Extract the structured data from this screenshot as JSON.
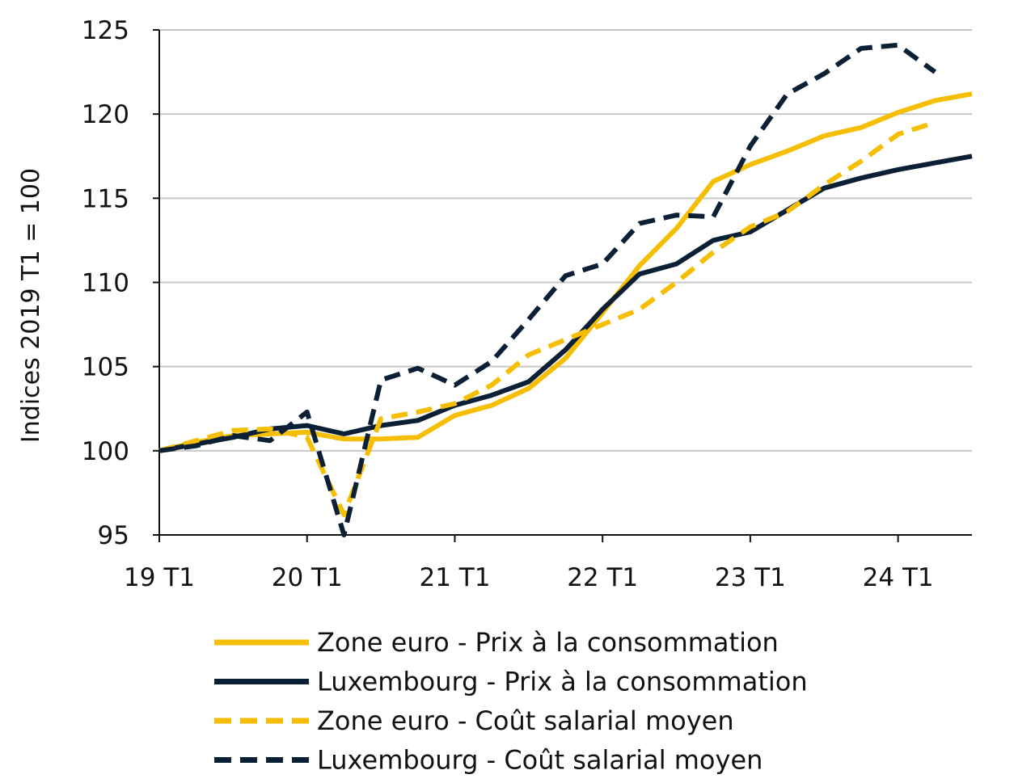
{
  "chart_data": {
    "type": "line",
    "title": "",
    "xlabel": "",
    "ylabel": "Indices 2019 T1 = 100",
    "ylim": [
      95,
      125
    ],
    "yticks": [
      95,
      100,
      105,
      110,
      115,
      120,
      125
    ],
    "xlim": [
      0,
      22
    ],
    "xticks": [
      {
        "x": 0,
        "label": "19 T1"
      },
      {
        "x": 4,
        "label": "20 T1"
      },
      {
        "x": 8,
        "label": "21 T1"
      },
      {
        "x": 12,
        "label": "22 T1"
      },
      {
        "x": 16,
        "label": "23 T1"
      },
      {
        "x": 20,
        "label": "24 T1"
      }
    ],
    "grid": "horizontal",
    "legend_position": "bottom",
    "series": [
      {
        "name": "Zone euro - Prix à la consommation",
        "color": "#F5BE00",
        "style": "solid",
        "x": [
          0,
          1,
          2,
          3,
          4,
          5,
          6,
          7,
          8,
          9,
          10,
          11,
          12,
          13,
          14,
          15,
          16,
          17,
          18,
          19,
          20,
          21,
          22
        ],
        "values": [
          100.0,
          100.5,
          100.9,
          101.0,
          101.1,
          100.7,
          100.7,
          100.8,
          102.1,
          102.7,
          103.7,
          105.5,
          108.2,
          111.0,
          113.2,
          116.0,
          117.0,
          117.8,
          118.7,
          119.2,
          120.1,
          120.8,
          121.2
        ]
      },
      {
        "name": "Luxembourg - Prix à la consommation",
        "color": "#0B1F35",
        "style": "solid",
        "x": [
          0,
          1,
          2,
          3,
          4,
          5,
          6,
          7,
          8,
          9,
          10,
          11,
          12,
          13,
          14,
          15,
          16,
          17,
          18,
          19,
          20,
          21,
          22
        ],
        "values": [
          100.0,
          100.4,
          100.8,
          101.3,
          101.5,
          101.0,
          101.5,
          101.8,
          102.7,
          103.3,
          104.1,
          106.0,
          108.4,
          110.5,
          111.1,
          112.5,
          113.0,
          114.3,
          115.6,
          116.2,
          116.7,
          117.1,
          117.5
        ]
      },
      {
        "name": "Zone euro - Coût salarial moyen",
        "color": "#F5BE00",
        "style": "dashed",
        "x": [
          0,
          1,
          2,
          3,
          4,
          5,
          6,
          7,
          8,
          9,
          10,
          11,
          12,
          13,
          14,
          15,
          16,
          17,
          18,
          19,
          20,
          21
        ],
        "values": [
          100.0,
          100.6,
          101.2,
          101.3,
          100.8,
          96.2,
          101.9,
          102.3,
          102.8,
          103.9,
          105.7,
          106.6,
          107.5,
          108.4,
          110.0,
          111.8,
          113.3,
          114.2,
          115.8,
          117.2,
          118.8,
          119.5
        ]
      },
      {
        "name": "Luxembourg - Coût salarial moyen",
        "color": "#0B1F35",
        "style": "dashed",
        "x": [
          0,
          1,
          2,
          3,
          4,
          5,
          6,
          7,
          8,
          9,
          10,
          11,
          12,
          13,
          14,
          15,
          16,
          17,
          18,
          19,
          20,
          21
        ],
        "values": [
          100.0,
          100.3,
          100.9,
          100.6,
          102.3,
          95.0,
          104.2,
          104.9,
          103.9,
          105.3,
          107.8,
          110.4,
          111.1,
          113.5,
          114.0,
          113.9,
          118.1,
          121.2,
          122.4,
          123.9,
          124.1,
          122.5
        ]
      }
    ]
  }
}
